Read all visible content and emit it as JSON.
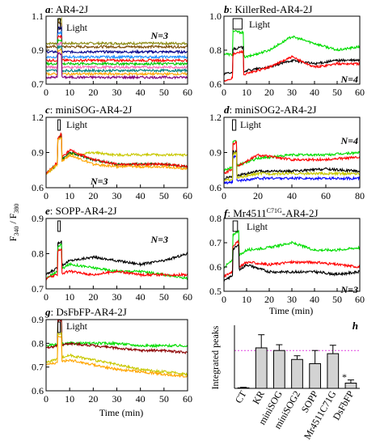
{
  "figure": {
    "y_axis_label_main": "F",
    "y_axis_label_num_sub": "340",
    "y_axis_label_sep": " / F",
    "y_axis_label_den_sub": "380",
    "light_label": "Light",
    "time_label": "Time (min)"
  },
  "chart_data": [
    {
      "type": "line",
      "panel_letter": "a",
      "title": "AR4-2J",
      "n_label": "N=3",
      "xlim": [
        0,
        60
      ],
      "ylim": [
        0.7,
        1.1
      ],
      "xticks": [
        0,
        10,
        20,
        30,
        40,
        50,
        60
      ],
      "yticks": [
        0.7,
        0.9,
        1.1
      ],
      "light": {
        "start": 5,
        "end": 6
      },
      "series": [
        {
          "color": "#8a8a10",
          "values": [
            0.94,
            0.94,
            0.94,
            0.94,
            0.94,
            0.94,
            0.94
          ]
        },
        {
          "color": "#7a4a00",
          "values": [
            0.92,
            0.92,
            0.92,
            0.92,
            0.92,
            0.92,
            0.92
          ]
        },
        {
          "color": "#00008b",
          "values": [
            0.89,
            0.89,
            0.89,
            0.89,
            0.89,
            0.89,
            0.89
          ]
        },
        {
          "color": "#1e90ff",
          "values": [
            0.86,
            0.86,
            0.86,
            0.86,
            0.86,
            0.86,
            0.86
          ]
        },
        {
          "color": "#ff0000",
          "values": [
            0.84,
            0.84,
            0.84,
            0.84,
            0.84,
            0.84,
            0.84
          ]
        },
        {
          "color": "#00c800",
          "values": [
            0.82,
            0.82,
            0.82,
            0.82,
            0.82,
            0.82,
            0.82
          ]
        },
        {
          "color": "#ff69b4",
          "values": [
            0.8,
            0.8,
            0.8,
            0.8,
            0.8,
            0.8,
            0.8
          ]
        },
        {
          "color": "#008080",
          "values": [
            0.78,
            0.78,
            0.78,
            0.78,
            0.78,
            0.78,
            0.78
          ]
        },
        {
          "color": "#ffa500",
          "values": [
            0.76,
            0.76,
            0.76,
            0.76,
            0.76,
            0.76,
            0.76
          ]
        },
        {
          "color": "#800080",
          "values": [
            0.74,
            0.74,
            0.74,
            0.74,
            0.74,
            0.74,
            0.74
          ]
        }
      ]
    },
    {
      "type": "line",
      "panel_letter": "b",
      "title": "KillerRed-AR4-2J",
      "n_label": "N=4",
      "xlim": [
        0,
        60
      ],
      "ylim": [
        0.6,
        1.0
      ],
      "xticks": [
        0,
        10,
        20,
        30,
        40,
        50,
        60
      ],
      "yticks": [
        0.6,
        0.8,
        1.0
      ],
      "light": {
        "start": 4,
        "end": 8
      },
      "series": [
        {
          "color": "#00dd00",
          "values": [
            0.78,
            0.76,
            0.8,
            0.88,
            0.84,
            0.8,
            0.82
          ]
        },
        {
          "color": "#000000",
          "values": [
            0.66,
            0.68,
            0.7,
            0.74,
            0.72,
            0.74,
            0.74
          ]
        },
        {
          "color": "#ff0000",
          "values": [
            0.62,
            0.66,
            0.7,
            0.76,
            0.7,
            0.72,
            0.72
          ]
        }
      ]
    },
    {
      "type": "line",
      "panel_letter": "c",
      "title": "miniSOG-AR4-2J",
      "n_label": "N=3",
      "xlim": [
        0,
        60
      ],
      "ylim": [
        0.6,
        1.2
      ],
      "xticks": [
        0,
        10,
        20,
        30,
        40,
        50,
        60
      ],
      "yticks": [
        0.6,
        0.9,
        1.2
      ],
      "light": {
        "start": 5,
        "end": 6
      },
      "series": [
        {
          "color": "#c8c800",
          "values": [
            0.72,
            0.88,
            0.9,
            0.88,
            0.88,
            0.88,
            0.88
          ]
        },
        {
          "color": "#006400",
          "values": [
            0.72,
            0.9,
            0.84,
            0.8,
            0.8,
            0.8,
            0.78
          ]
        },
        {
          "color": "#ff0000",
          "values": [
            0.72,
            0.92,
            0.84,
            0.8,
            0.8,
            0.8,
            0.78
          ]
        },
        {
          "color": "#ffa500",
          "values": [
            0.72,
            0.88,
            0.8,
            0.78,
            0.78,
            0.78,
            0.76
          ]
        }
      ]
    },
    {
      "type": "line",
      "panel_letter": "d",
      "title": "miniSOG2-AR4-2J",
      "n_label": "N=4",
      "xlim": [
        0,
        80
      ],
      "ylim": [
        0.6,
        1.2
      ],
      "xticks": [
        0,
        20,
        40,
        60,
        80
      ],
      "yticks": [
        0.6,
        0.9,
        1.2
      ],
      "light": {
        "start": 5,
        "end": 7
      },
      "series": [
        {
          "color": "#00dd00",
          "values": [
            0.75,
            0.85,
            0.88,
            0.88,
            0.9
          ]
        },
        {
          "color": "#ff0000",
          "values": [
            0.72,
            0.88,
            0.84,
            0.84,
            0.86
          ]
        },
        {
          "color": "#000000",
          "values": [
            0.68,
            0.74,
            0.74,
            0.76,
            0.74
          ]
        },
        {
          "color": "#0000ff",
          "values": [
            0.64,
            0.68,
            0.68,
            0.68,
            0.68
          ]
        },
        {
          "color": "#c8c800",
          "values": [
            0.66,
            0.72,
            0.72,
            0.72,
            0.72
          ]
        }
      ]
    },
    {
      "type": "line",
      "panel_letter": "e",
      "title": "SOPP-AR4-2J",
      "n_label": "N=3",
      "xlim": [
        0,
        60
      ],
      "ylim": [
        0.7,
        0.9
      ],
      "xticks": [
        0,
        10,
        20,
        30,
        40,
        50,
        60
      ],
      "yticks": [
        0.7,
        0.8,
        0.9
      ],
      "light": {
        "start": 5,
        "end": 6
      },
      "series": [
        {
          "color": "#000000",
          "values": [
            0.74,
            0.78,
            0.79,
            0.78,
            0.77,
            0.78,
            0.8
          ]
        },
        {
          "color": "#00dd00",
          "values": [
            0.73,
            0.77,
            0.76,
            0.75,
            0.75,
            0.74,
            0.73
          ]
        },
        {
          "color": "#ff0000",
          "values": [
            0.73,
            0.75,
            0.74,
            0.75,
            0.74,
            0.74,
            0.74
          ]
        }
      ]
    },
    {
      "type": "line",
      "panel_letter": "f",
      "title": "Mr4511",
      "title_sup": "C71G",
      "title_rest": "-AR4-2J",
      "n_label": "N=3",
      "xlim": [
        0,
        60
      ],
      "ylim": [
        0.5,
        0.8
      ],
      "xticks": [
        0,
        10,
        20,
        30,
        40,
        50,
        60
      ],
      "yticks": [
        0.5,
        0.6,
        0.7,
        0.8
      ],
      "light": {
        "start": 4,
        "end": 6
      },
      "series": [
        {
          "color": "#00dd00",
          "values": [
            0.6,
            0.67,
            0.68,
            0.7,
            0.67,
            0.67,
            0.68
          ]
        },
        {
          "color": "#ff0000",
          "values": [
            0.56,
            0.62,
            0.61,
            0.62,
            0.62,
            0.61,
            0.6
          ]
        },
        {
          "color": "#000000",
          "values": [
            0.54,
            0.61,
            0.58,
            0.58,
            0.58,
            0.57,
            0.58
          ]
        }
      ]
    },
    {
      "type": "line",
      "panel_letter": "g",
      "title": "DsFbFP-AR4-2J",
      "xlim": [
        0,
        60
      ],
      "ylim": [
        0.6,
        0.9
      ],
      "xticks": [
        0,
        10,
        20,
        30,
        40,
        50,
        60
      ],
      "yticks": [
        0.6,
        0.7,
        0.8,
        0.9
      ],
      "light": {
        "start": 5,
        "end": 6
      },
      "series": [
        {
          "color": "#00dd00",
          "values": [
            0.79,
            0.8,
            0.8,
            0.8,
            0.79,
            0.79,
            0.79
          ]
        },
        {
          "color": "#8b0000",
          "values": [
            0.78,
            0.8,
            0.79,
            0.78,
            0.77,
            0.77,
            0.76
          ]
        },
        {
          "color": "#c8c800",
          "values": [
            0.72,
            0.75,
            0.73,
            0.71,
            0.69,
            0.68,
            0.67
          ]
        },
        {
          "color": "#ffa500",
          "values": [
            0.71,
            0.73,
            0.71,
            0.69,
            0.68,
            0.67,
            0.66
          ]
        }
      ]
    },
    {
      "type": "bar",
      "panel_letter": "h",
      "ylabel": "Integrated peaks",
      "categories": [
        "CT",
        "KR",
        "miniSOG",
        "miniSOG2",
        "SOPP",
        "Mr4511C71G",
        "DsFbFP"
      ],
      "values": [
        0.05,
        3.85,
        3.6,
        2.75,
        2.35,
        3.3,
        0.5
      ],
      "errors": [
        0.05,
        1.25,
        0.55,
        0.35,
        1.25,
        0.8,
        0.3
      ],
      "reference_line": 3.6,
      "annotation": "*",
      "ylim": [
        0,
        6
      ]
    }
  ]
}
